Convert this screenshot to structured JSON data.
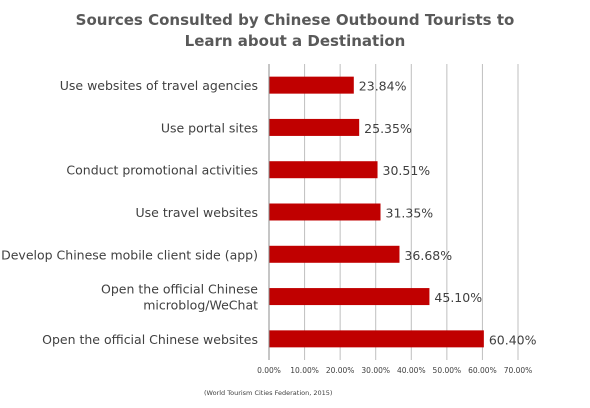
{
  "chart_data": {
    "type": "bar",
    "orientation": "horizontal",
    "title": [
      "Sources Consulted by Chinese Outbound Tourists to",
      "Learn about a Destination"
    ],
    "categories": [
      [
        "Use websites of travel agencies"
      ],
      [
        "Use portal sites"
      ],
      [
        "Conduct promotional activities"
      ],
      [
        "Use travel websites"
      ],
      [
        "Develop Chinese mobile client side (app)"
      ],
      [
        "Open the official Chinese",
        "microblog/WeChat"
      ],
      [
        "Open the official Chinese websites"
      ]
    ],
    "values": [
      23.84,
      25.35,
      30.51,
      31.35,
      36.68,
      45.1,
      60.4
    ],
    "value_labels": [
      "23.84%",
      "25.35%",
      "30.51%",
      "31.35%",
      "36.68%",
      "45.10%",
      "60.40%"
    ],
    "xlim": [
      0,
      70
    ],
    "x_ticks": [
      0,
      10,
      20,
      30,
      40,
      50,
      60,
      70
    ],
    "x_tick_labels": [
      "0.00%",
      "10.00%",
      "20.00%",
      "30.00%",
      "40.00%",
      "50.00%",
      "60.00%",
      "70.00%"
    ],
    "grid": true,
    "legend": false,
    "bar_color": "#c00000",
    "xlabel": "",
    "ylabel": ""
  },
  "source_note": "(World Tourism Cities Federation, 2015)"
}
